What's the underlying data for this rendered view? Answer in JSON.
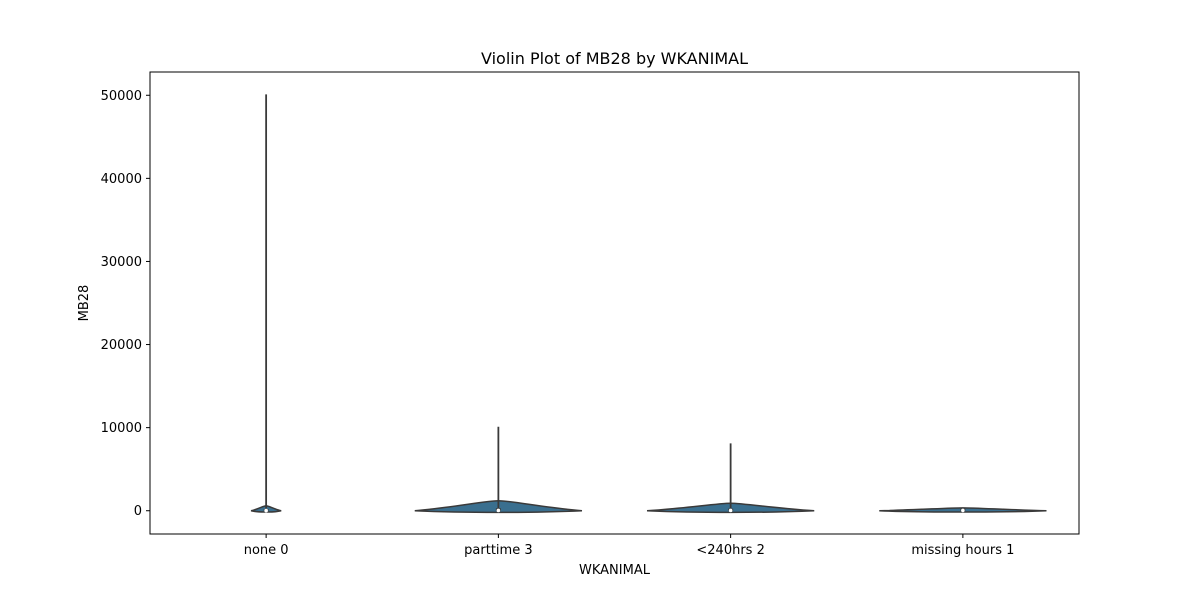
{
  "chart_data": {
    "type": "violin",
    "title": "Violin Plot of MB28 by WKANIMAL",
    "xlabel": "WKANIMAL",
    "ylabel": "MB28",
    "ylim": [
      -2800,
      52800
    ],
    "yticks": [
      0,
      10000,
      20000,
      30000,
      40000,
      50000
    ],
    "yticklabels": [
      "0",
      "10000",
      "20000",
      "30000",
      "40000",
      "50000"
    ],
    "grid": false,
    "categories": [
      "none 0",
      "parttime 3",
      "<240hrs 2",
      "missing hours 1"
    ],
    "series": [
      {
        "category": "none 0",
        "min": -80,
        "max": 50100,
        "q1": 0,
        "median": 20,
        "q3": 200,
        "body_min": -150,
        "body_max": 600,
        "relative_width": 0.18
      },
      {
        "category": "parttime 3",
        "min": -150,
        "max": 10100,
        "q1": 0,
        "median": 30,
        "q3": 300,
        "body_min": -200,
        "body_max": 1200,
        "relative_width": 1.0
      },
      {
        "category": "<240hrs 2",
        "min": -150,
        "max": 8100,
        "q1": 0,
        "median": 30,
        "q3": 250,
        "body_min": -200,
        "body_max": 900,
        "relative_width": 1.0
      },
      {
        "category": "missing hours 1",
        "min": -100,
        "max": 350,
        "q1": 0,
        "median": 40,
        "q3": 250,
        "body_min": -150,
        "body_max": 350,
        "relative_width": 1.0
      }
    ],
    "colors": {
      "violin_fill": "#3a6f8f",
      "violin_edge": "#3a3a3a",
      "box": "#3a3a3a"
    }
  }
}
